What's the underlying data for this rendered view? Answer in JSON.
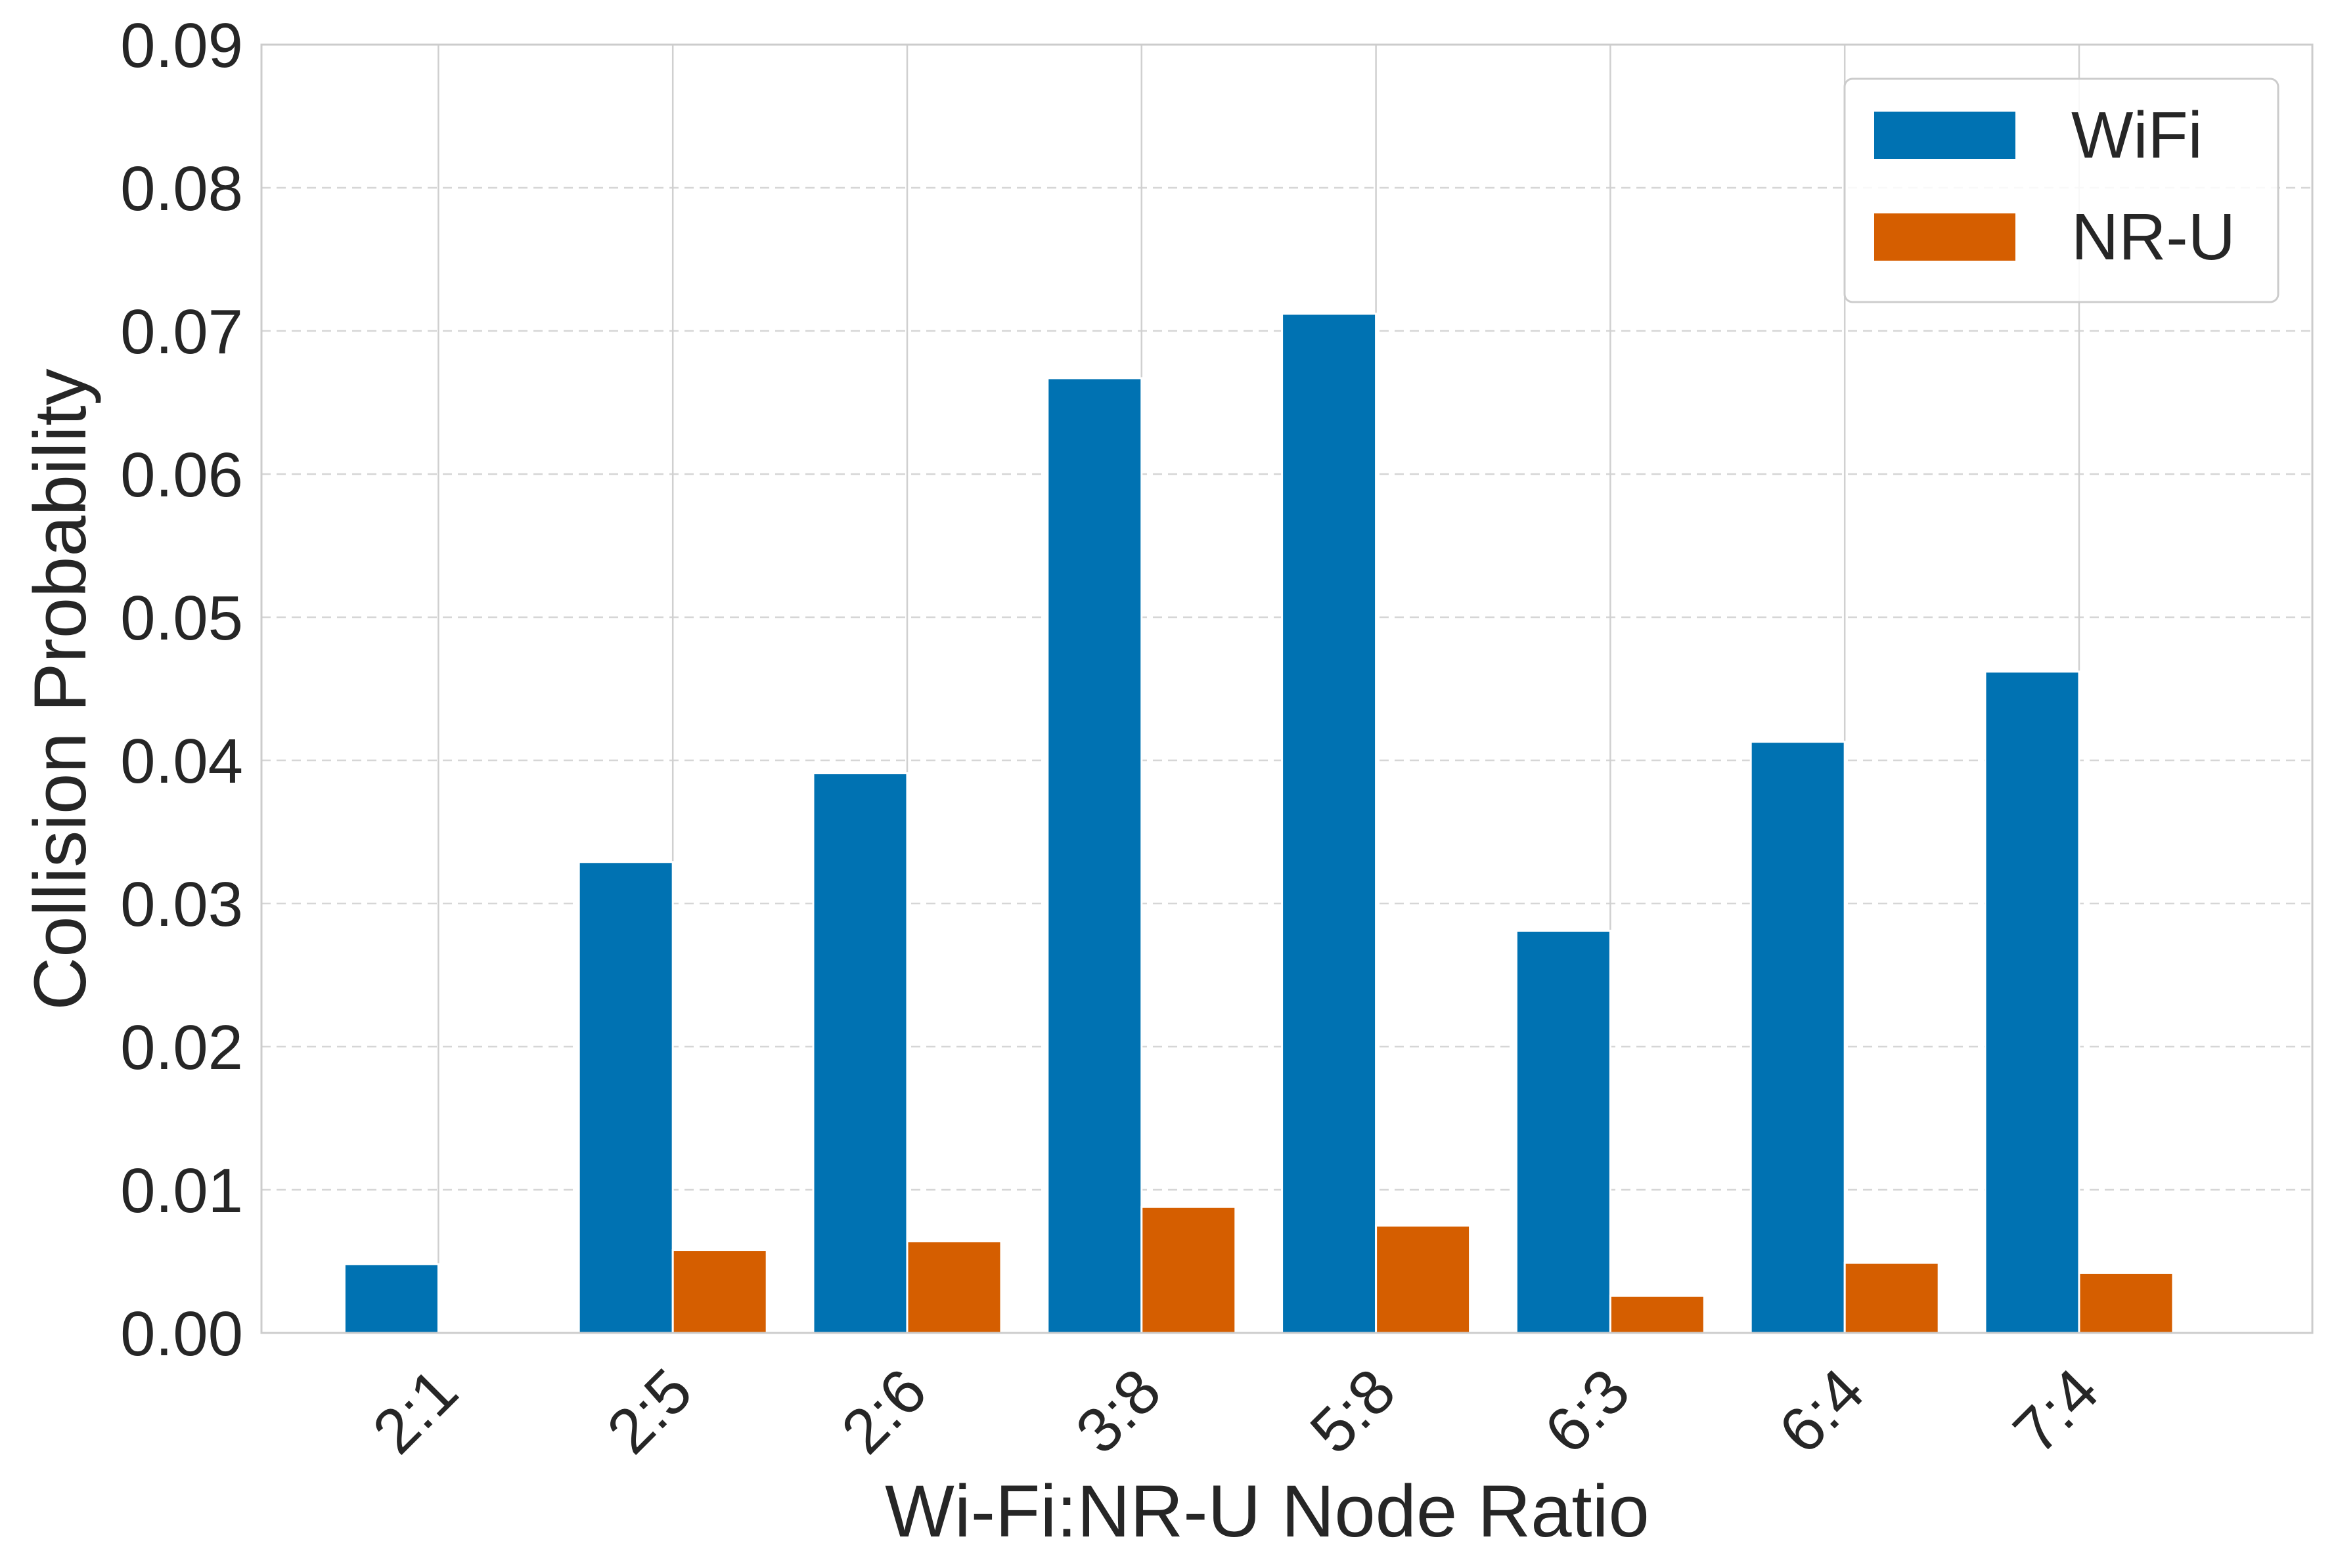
{
  "chart_data": {
    "type": "bar",
    "title": "",
    "xlabel": "Wi-Fi:NR-U Node Ratio",
    "ylabel": "Collision Probability",
    "categories": [
      "2:1",
      "2:5",
      "2:6",
      "3:8",
      "5:8",
      "6:3",
      "6:4",
      "7:4"
    ],
    "series": [
      {
        "name": "WiFi",
        "color": "#0072B2",
        "values": [
          0.0048,
          0.0329,
          0.0391,
          0.0667,
          0.0712,
          0.0281,
          0.0413,
          0.0462
        ]
      },
      {
        "name": "NR-U",
        "color": "#D55E00",
        "values": [
          0.0,
          0.0058,
          0.0064,
          0.0088,
          0.0075,
          0.0026,
          0.0049,
          0.0042
        ]
      }
    ],
    "ylim": [
      0,
      0.09
    ],
    "yticks": [
      "0.00",
      "0.01",
      "0.02",
      "0.03",
      "0.04",
      "0.05",
      "0.06",
      "0.07",
      "0.08",
      "0.09"
    ],
    "ygrid": true,
    "xtick_rotation": 45,
    "legend_position": "upper-right"
  }
}
